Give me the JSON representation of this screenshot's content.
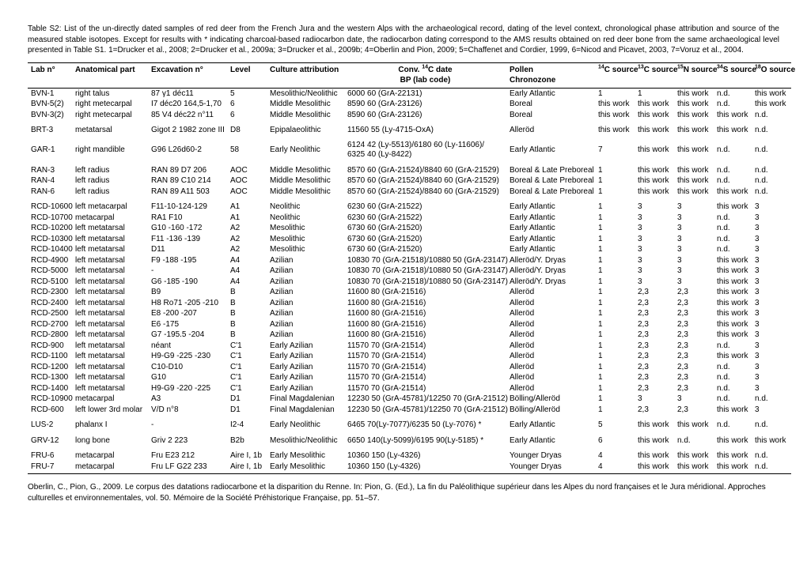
{
  "caption": "Table S2: List of the un-directly dated samples of red deer from the French Jura and the western Alps with the archaeological record, dating of the level context, chronological phase attribution and source of the measured stable isotopes. Except for results with * indicating charcoal-based radiocarbon date, the radiocarbon dating correspond to the AMS results obtained on red deer bone from the same archaeological level presented in Table S1. 1=Drucker et al., 2008; 2=Drucker et al., 2009a; 3=Drucker et al., 2009b; 4=Oberlin and Pion, 2009; 5=Chaffenet and Cordier, 1999, 6=Nicod and Picavet, 2003, 7=Voruz et al., 2004.",
  "citation": "Oberlin, C., Pion, G., 2009. Le corpus des datations radiocarbone et la disparition du Renne. In: Pion, G. (Ed.), La fin du Paléolithique supérieur dans les Alpes du nord françaises et le Jura méridional. Approches culturelles et environnementales, vol. 50. Mémoire de la Société Préhistorique Française, pp. 51–57.",
  "headers": {
    "lab": "Lab n°",
    "part": "Anatomical part",
    "exc": "Excavation n°",
    "level": "Level",
    "culture": "Culture attribution",
    "conv_l1_pre": "Conv. ",
    "conv_l1_sup": "14",
    "conv_l1_post": "C date",
    "conv_l2": "BP (lab code)",
    "pollen_l1": "Pollen",
    "pollen_l2": "Chronozone",
    "c14_sup": "14",
    "c14_post": "C source",
    "c13_sup": "13",
    "c13_post": "C source",
    "n15_sup": "15",
    "n15_post": "N source",
    "s34_sup": "34",
    "s34_post": "S source",
    "o18_sup": "18",
    "o18_post": "O source"
  },
  "groups": [
    [
      {
        "lab": "BVN-1",
        "part": "right talus",
        "exc": "87 γ1 déc11",
        "level": "5",
        "cult": "Mesolithic/Neolithic",
        "conv": "6000  60 (GrA-22131)",
        "pollen": "Early Atlantic",
        "c14": "1",
        "c13": "1",
        "n15": "this work",
        "s34": "n.d.",
        "o18": "this work"
      },
      {
        "lab": "BVN-5(2)",
        "part": "right metecarpal",
        "exc": "I7 déc20 164,5-1,70",
        "level": "6",
        "cult": "Middle Mesolithic",
        "conv": "8590  60 (GrA-23126)",
        "pollen": "Boreal",
        "c14": "this work",
        "c13": "this work",
        "n15": "this work",
        "s34": "n.d.",
        "o18": "this work"
      },
      {
        "lab": "BVN-3(2)",
        "part": "right metecarpal",
        "exc": "85 V4 déc22 n°11",
        "level": "6",
        "cult": "Middle Mesolithic",
        "conv": "8590  60 (GrA-23126)",
        "pollen": "Boreal",
        "c14": "this work",
        "c13": "this work",
        "n15": "this work",
        "s34": "this work",
        "o18": "n.d."
      }
    ],
    [
      {
        "lab": "BRT-3",
        "part": "metatarsal",
        "exc": "Gigot 2 1982 zone III",
        "level": "D8",
        "cult": "Epipalaeolithic",
        "conv": "11560  55 (Ly-4715-OxA)",
        "pollen": "Alleröd",
        "c14": "this work",
        "c13": "this work",
        "n15": "this work",
        "s34": "this work",
        "o18": "n.d."
      }
    ],
    [
      {
        "lab": "GAR-1",
        "part": "right mandible",
        "exc": "G96 L26d60-2",
        "level": "58",
        "cult": "Early Neolithic",
        "conv": "6124  42 (Ly-5513)/6180  60 (Ly-11606)/\n6325  40 (Ly-8422)",
        "pollen": "Early Atlantic",
        "c14": "7",
        "c13": "this work",
        "n15": "this work",
        "s34": "n.d.",
        "o18": "n.d."
      }
    ],
    [
      {
        "lab": "RAN-3",
        "part": "left radius",
        "exc": "RAN 89 D7 206",
        "level": "AOC",
        "cult": "Middle Mesolithic",
        "conv": "8570  60 (GrA-21524)/8840  60 (GrA-21529)",
        "pollen": "Boreal & Late Preboreal",
        "c14": "1",
        "c13": "this work",
        "n15": "this work",
        "s34": "n.d.",
        "o18": "n.d."
      },
      {
        "lab": "RAN-4",
        "part": "left radius",
        "exc": "RAN 89 C10 214",
        "level": "AOC",
        "cult": "Middle Mesolithic",
        "conv": "8570  60 (GrA-21524)/8840  60 (GrA-21529)",
        "pollen": "Boreal & Late Preboreal",
        "c14": "1",
        "c13": "this work",
        "n15": "this work",
        "s34": "n.d.",
        "o18": "n.d."
      },
      {
        "lab": "RAN-6",
        "part": "left radius",
        "exc": "RAN 89 A11 503",
        "level": "AOC",
        "cult": "Middle Mesolithic",
        "conv": "8570  60 (GrA-21524)/8840  60 (GrA-21529)",
        "pollen": "Boreal & Late Preboreal",
        "c14": "1",
        "c13": "this work",
        "n15": "this work",
        "s34": "this work",
        "o18": "n.d."
      }
    ],
    [
      {
        "lab": "RCD-10600",
        "part": "left metacarpal",
        "exc": "F11-10-124-129",
        "level": "A1",
        "cult": "Neolithic",
        "conv": "6230  60 (GrA-21522)",
        "pollen": "Early Atlantic",
        "c14": "1",
        "c13": "3",
        "n15": "3",
        "s34": "this work",
        "o18": "3"
      },
      {
        "lab": "RCD-10700",
        "part": "metacarpal",
        "exc": "RA1 F10",
        "level": "A1",
        "cult": "Neolithic",
        "conv": "6230  60 (GrA-21522)",
        "pollen": "Early Atlantic",
        "c14": "1",
        "c13": "3",
        "n15": "3",
        "s34": "n.d.",
        "o18": "3"
      },
      {
        "lab": "RCD-10200",
        "part": "left metatarsal",
        "exc": "G10 -160 -172",
        "level": "A2",
        "cult": "Mesolithic",
        "conv": "6730  60 (GrA-21520)",
        "pollen": "Early Atlantic",
        "c14": "1",
        "c13": "3",
        "n15": "3",
        "s34": "n.d.",
        "o18": "3"
      },
      {
        "lab": "RCD-10300",
        "part": "left metatarsal",
        "exc": "F11 -136 -139",
        "level": "A2",
        "cult": "Mesolithic",
        "conv": "6730  60 (GrA-21520)",
        "pollen": "Early Atlantic",
        "c14": "1",
        "c13": "3",
        "n15": "3",
        "s34": "n.d.",
        "o18": "3"
      },
      {
        "lab": "RCD-10400",
        "part": "left metatarsal",
        "exc": "D11",
        "level": "A2",
        "cult": "Mesolithic",
        "conv": "6730  60 (GrA-21520)",
        "pollen": "Early Atlantic",
        "c14": "1",
        "c13": "3",
        "n15": "3",
        "s34": "n.d.",
        "o18": "3"
      },
      {
        "lab": "RCD-4900",
        "part": "left metatarsal",
        "exc": "F9 -188 -195",
        "level": "A4",
        "cult": "Azilian",
        "conv": "10830  70 (GrA-21518)/10880  50 (GrA-23147)",
        "pollen": "Alleröd/Y. Dryas",
        "c14": "1",
        "c13": "3",
        "n15": "3",
        "s34": "this work",
        "o18": "3"
      },
      {
        "lab": "RCD-5000",
        "part": "left metatarsal",
        "exc": "-",
        "level": "A4",
        "cult": "Azilian",
        "conv": "10830  70 (GrA-21518)/10880  50 (GrA-23147)",
        "pollen": "Alleröd/Y. Dryas",
        "c14": "1",
        "c13": "3",
        "n15": "3",
        "s34": "this work",
        "o18": "3"
      },
      {
        "lab": "RCD-5100",
        "part": "left metatarsal",
        "exc": "G6 -185 -190",
        "level": "A4",
        "cult": "Azilian",
        "conv": "10830  70 (GrA-21518)/10880  50 (GrA-23147)",
        "pollen": "Alleröd/Y. Dryas",
        "c14": "1",
        "c13": "3",
        "n15": "3",
        "s34": "this work",
        "o18": "3"
      },
      {
        "lab": "RCD-2300",
        "part": "left metatarsal",
        "exc": "B9",
        "level": "B",
        "cult": "Azilian",
        "conv": "11600  80 (GrA-21516)",
        "pollen": "Alleröd",
        "c14": "1",
        "c13": "2,3",
        "n15": "2,3",
        "s34": "this work",
        "o18": "3"
      },
      {
        "lab": "RCD-2400",
        "part": "left metatarsal",
        "exc": "H8 Ro71 -205 -210",
        "level": "B",
        "cult": "Azilian",
        "conv": "11600  80 (GrA-21516)",
        "pollen": "Alleröd",
        "c14": "1",
        "c13": "2,3",
        "n15": "2,3",
        "s34": "this work",
        "o18": "3"
      },
      {
        "lab": "RCD-2500",
        "part": "left metatarsal",
        "exc": "E8 -200 -207",
        "level": "B",
        "cult": "Azilian",
        "conv": "11600  80 (GrA-21516)",
        "pollen": "Alleröd",
        "c14": "1",
        "c13": "2,3",
        "n15": "2,3",
        "s34": "this work",
        "o18": "3"
      },
      {
        "lab": "RCD-2700",
        "part": "left metatarsal",
        "exc": "E6 -175",
        "level": "B",
        "cult": "Azilian",
        "conv": "11600  80 (GrA-21516)",
        "pollen": "Alleröd",
        "c14": "1",
        "c13": "2,3",
        "n15": "2,3",
        "s34": "this work",
        "o18": "3"
      },
      {
        "lab": "RCD-2800",
        "part": "left metatarsal",
        "exc": "G7 -195.5 -204",
        "level": "B",
        "cult": "Azilian",
        "conv": "11600  80 (GrA-21516)",
        "pollen": "Alleröd",
        "c14": "1",
        "c13": "2,3",
        "n15": "2,3",
        "s34": "this work",
        "o18": "3"
      },
      {
        "lab": "RCD-900",
        "part": "left metatarsal",
        "exc": "néant",
        "level": "C'1",
        "cult": "Early Azilian",
        "conv": "11570  70 (GrA-21514)",
        "pollen": "Alleröd",
        "c14": "1",
        "c13": "2,3",
        "n15": "2,3",
        "s34": "n.d.",
        "o18": "3"
      },
      {
        "lab": "RCD-1100",
        "part": "left metatarsal",
        "exc": "H9-G9 -225 -230",
        "level": "C'1",
        "cult": "Early Azilian",
        "conv": "11570  70 (GrA-21514)",
        "pollen": "Alleröd",
        "c14": "1",
        "c13": "2,3",
        "n15": "2,3",
        "s34": "this work",
        "o18": "3"
      },
      {
        "lab": "RCD-1200",
        "part": "left metatarsal",
        "exc": "C10-D10",
        "level": "C'1",
        "cult": "Early Azilian",
        "conv": "11570  70 (GrA-21514)",
        "pollen": "Alleröd",
        "c14": "1",
        "c13": "2,3",
        "n15": "2,3",
        "s34": "n.d.",
        "o18": "3"
      },
      {
        "lab": "RCD-1300",
        "part": "left metatarsal",
        "exc": "G10",
        "level": "C'1",
        "cult": "Early Azilian",
        "conv": "11570  70 (GrA-21514)",
        "pollen": "Alleröd",
        "c14": "1",
        "c13": "2,3",
        "n15": "2,3",
        "s34": "n.d.",
        "o18": "3"
      },
      {
        "lab": "RCD-1400",
        "part": "left metatarsal",
        "exc": "H9-G9 -220 -225",
        "level": "C'1",
        "cult": "Early Azilian",
        "conv": "11570  70 (GrA-21514)",
        "pollen": "Alleröd",
        "c14": "1",
        "c13": "2,3",
        "n15": "2,3",
        "s34": "n.d.",
        "o18": "3"
      },
      {
        "lab": "RCD-10900",
        "part": "metacarpal",
        "exc": "A3",
        "level": "D1",
        "cult": "Final Magdalenian",
        "conv": "12230  50 (GrA-45781)/12250  70 (GrA-21512)",
        "pollen": "Bölling/Alleröd",
        "c14": "1",
        "c13": "3",
        "n15": "3",
        "s34": "n.d.",
        "o18": "n.d."
      },
      {
        "lab": "RCD-600",
        "part": "left lower 3rd molar",
        "exc": "V/D n°8",
        "level": "D1",
        "cult": "Final Magdalenian",
        "conv": "12230  50 (GrA-45781)/12250  70 (GrA-21512)",
        "pollen": "Bölling/Alleröd",
        "c14": "1",
        "c13": "2,3",
        "n15": "2,3",
        "s34": "this work",
        "o18": "3"
      }
    ],
    [
      {
        "lab": "LUS-2",
        "part": "phalanx I",
        "exc": "-",
        "level": "I2-4",
        "cult": "Early Neolithic",
        "conv": "6465  70(Ly-7077)/6235  50 (Ly-7076) *",
        "pollen": "Early Atlantic",
        "c14": "5",
        "c13": "this work",
        "n15": "this work",
        "s34": "n.d.",
        "o18": "n.d."
      }
    ],
    [
      {
        "lab": "GRV-12",
        "part": "long bone",
        "exc": "Griv 2 223",
        "level": "B2b",
        "cult": "Mesolithic/Neolithic",
        "conv": "6650  140(Ly-5099)/6195  90(Ly-5185) *",
        "pollen": "Early Atlantic",
        "c14": "6",
        "c13": "this work",
        "n15": "n.d.",
        "s34": "this work",
        "o18": "this work"
      }
    ],
    [
      {
        "lab": "FRU-6",
        "part": "metacarpal",
        "exc": "Fru E23 212",
        "level": "Aire I, 1b",
        "cult": "Early Mesolithic",
        "conv": "10360  150 (Ly-4326)",
        "pollen": "Younger Dryas",
        "c14": "4",
        "c13": "this work",
        "n15": "this work",
        "s34": "this work",
        "o18": "n.d."
      },
      {
        "lab": "FRU-7",
        "part": "metacarpal",
        "exc": "Fru LF G22 233",
        "level": "Aire I, 1b",
        "cult": "Early Mesolithic",
        "conv": "10360  150 (Ly-4326)",
        "pollen": "Younger Dryas",
        "c14": "4",
        "c13": "this work",
        "n15": "this work",
        "s34": "this work",
        "o18": "n.d."
      }
    ]
  ]
}
